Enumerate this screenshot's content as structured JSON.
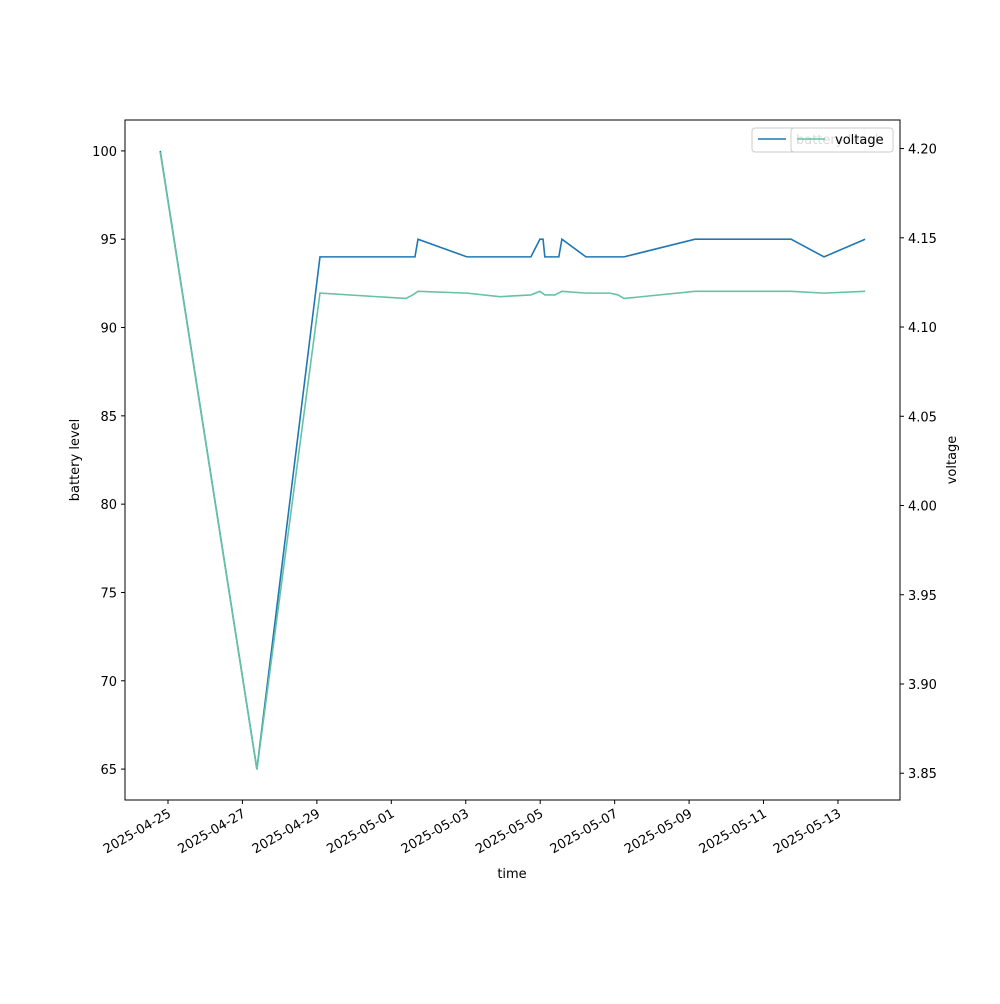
{
  "chart_data": {
    "type": "line",
    "xlabel": "time",
    "ylabel": "battery level",
    "y2label": "voltage",
    "xlim": [
      "2025-04-23T20:17",
      "2025-05-14T16:00"
    ],
    "xticks": [
      "2025-04-25",
      "2025-04-27",
      "2025-04-29",
      "2025-05-01",
      "2025-05-03",
      "2025-05-05",
      "2025-05-07",
      "2025-05-09",
      "2025-05-11",
      "2025-05-13"
    ],
    "ylim": [
      63.25,
      101.75
    ],
    "yticks": [
      65,
      70,
      75,
      80,
      85,
      90,
      95,
      100
    ],
    "y2lim": [
      3.835,
      4.216
    ],
    "y2ticks": [
      {
        "value": 3.85,
        "label": "3.85"
      },
      {
        "value": 3.9,
        "label": "3.90"
      },
      {
        "value": 3.95,
        "label": "3.95"
      },
      {
        "value": 4.0,
        "label": "4.00"
      },
      {
        "value": 4.05,
        "label": "4.05"
      },
      {
        "value": 4.1,
        "label": "4.10"
      },
      {
        "value": 4.15,
        "label": "4.15"
      },
      {
        "value": 4.2,
        "label": "4.20"
      }
    ],
    "series": [
      {
        "name": "battery level",
        "color": "#1f77b4",
        "x": [
          "2025-04-24T19:00",
          "2025-04-27T09:20",
          "2025-04-29T02:00",
          "2025-05-01T15:15",
          "2025-05-01T17:12",
          "2025-05-03T00:45",
          "2025-05-04T18:00",
          "2025-05-04T23:50",
          "2025-05-05T01:50",
          "2025-05-05T03:00",
          "2025-05-05T12:00",
          "2025-05-05T14:00",
          "2025-05-06T05:30",
          "2025-05-07T06:00",
          "2025-05-09T03:50",
          "2025-05-11T17:45",
          "2025-05-12T15:00",
          "2025-05-13T17:30"
        ],
        "values": [
          100,
          65,
          94,
          94,
          95,
          94,
          94,
          95,
          95,
          94,
          94,
          95,
          94,
          94,
          95,
          95,
          94,
          95
        ]
      },
      {
        "name": "voltage",
        "color": "#66c2a5",
        "axis": "y2",
        "x": [
          "2025-04-24T19:00",
          "2025-04-27T09:20",
          "2025-04-29T02:00",
          "2025-05-01T09:20",
          "2025-05-01T13:50",
          "2025-05-01T17:12",
          "2025-05-03T00:45",
          "2025-05-03T22:00",
          "2025-05-04T18:00",
          "2025-05-04T23:50",
          "2025-05-05T03:00",
          "2025-05-05T09:30",
          "2025-05-05T14:00",
          "2025-05-06T05:30",
          "2025-05-06T13:15",
          "2025-05-06T21:00",
          "2025-05-07T02:10",
          "2025-05-07T06:00",
          "2025-05-09T03:50",
          "2025-05-11T17:45",
          "2025-05-12T15:00",
          "2025-05-13T17:30"
        ],
        "values": [
          4.198,
          3.852,
          4.119,
          4.116,
          4.118,
          4.12,
          4.119,
          4.117,
          4.118,
          4.12,
          4.118,
          4.118,
          4.12,
          4.119,
          4.119,
          4.119,
          4.118,
          4.116,
          4.12,
          4.12,
          4.119,
          4.12
        ]
      }
    ]
  }
}
